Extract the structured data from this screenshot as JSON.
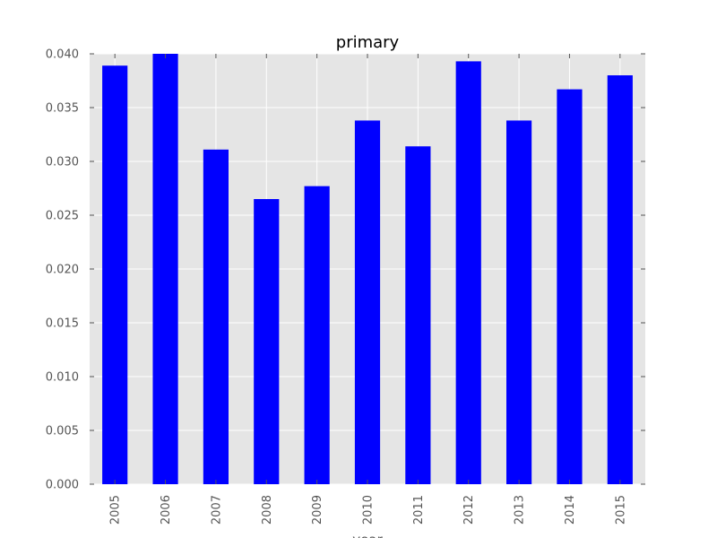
{
  "chart_data": {
    "type": "bar",
    "title": "primary",
    "xlabel": "year",
    "ylabel": "",
    "categories": [
      "2005",
      "2006",
      "2007",
      "2008",
      "2009",
      "2010",
      "2011",
      "2012",
      "2013",
      "2014",
      "2015"
    ],
    "values": [
      0.0389,
      0.04,
      0.0311,
      0.0265,
      0.0277,
      0.0338,
      0.0314,
      0.0393,
      0.0338,
      0.0367,
      0.038
    ],
    "ylim": [
      0,
      0.04
    ],
    "yticks": [
      "0.000",
      "0.005",
      "0.010",
      "0.015",
      "0.020",
      "0.025",
      "0.030",
      "0.035",
      "0.040"
    ],
    "grid": true,
    "legend": "none",
    "colors": {
      "bar": "#0000ff",
      "plot_background": "#e5e5e5",
      "grid": "#ffffff",
      "tick_text": "#555555"
    }
  }
}
